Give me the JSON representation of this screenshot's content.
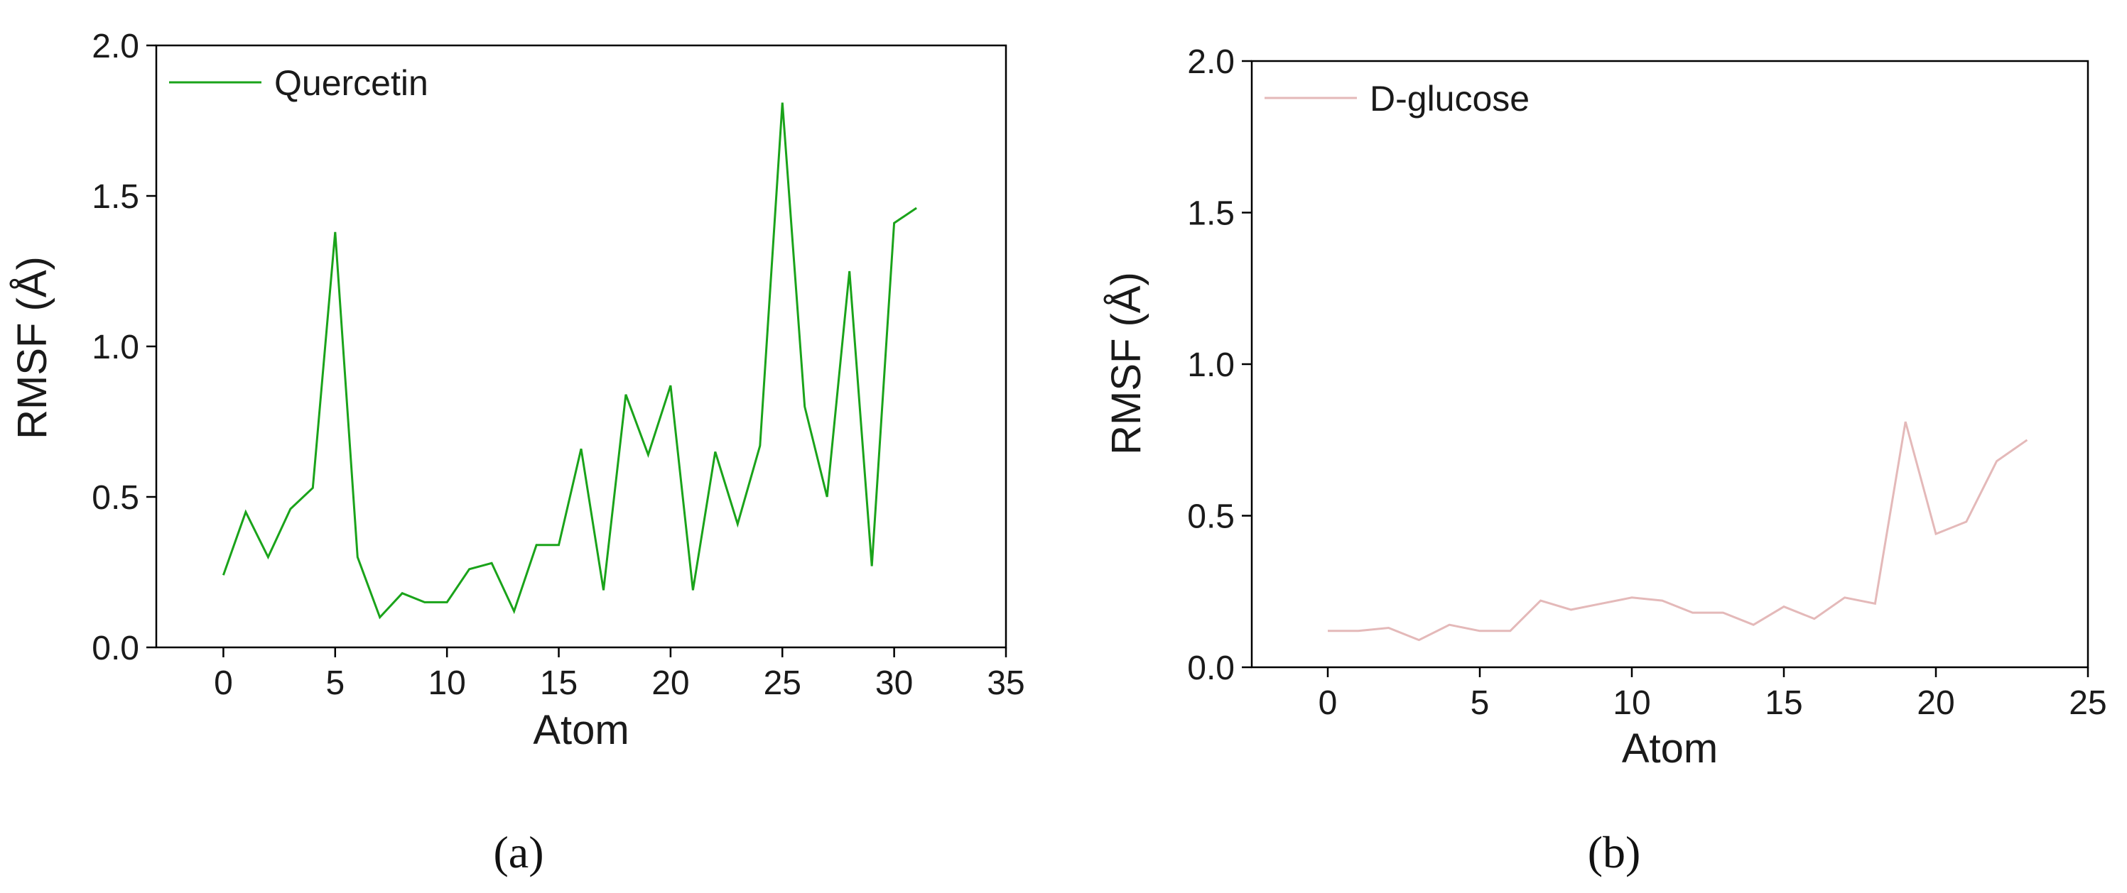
{
  "chart_data": [
    {
      "type": "line",
      "panel_label": "(a)",
      "xlabel": "Atom",
      "ylabel": "RMSF (Å)",
      "xlim": [
        -3,
        35
      ],
      "ylim": [
        0,
        2.0
      ],
      "xticks": [
        0,
        5,
        10,
        15,
        20,
        25,
        30,
        35
      ],
      "yticks": [
        0.0,
        0.5,
        1.0,
        1.5,
        2.0
      ],
      "xtick_labels": [
        "0",
        "5",
        "10",
        "15",
        "20",
        "25",
        "30",
        "35"
      ],
      "ytick_labels": [
        "0.0",
        "0.5",
        "1.0",
        "1.5",
        "2.0"
      ],
      "grid": false,
      "legend_position": "top-left",
      "series": [
        {
          "name": "Quercetin",
          "color": "#1aa31a",
          "x": [
            0,
            1,
            2,
            3,
            4,
            5,
            6,
            7,
            8,
            9,
            10,
            11,
            12,
            13,
            14,
            15,
            16,
            17,
            18,
            19,
            20,
            21,
            22,
            23,
            24,
            25,
            26,
            27,
            28,
            29,
            30,
            31
          ],
          "y": [
            0.24,
            0.45,
            0.3,
            0.46,
            0.53,
            1.38,
            0.3,
            0.1,
            0.18,
            0.15,
            0.15,
            0.26,
            0.28,
            0.12,
            0.34,
            0.34,
            0.66,
            0.19,
            0.84,
            0.64,
            0.87,
            0.19,
            0.65,
            0.41,
            0.67,
            1.81,
            0.8,
            0.5,
            1.25,
            0.27,
            1.41,
            1.46
          ]
        }
      ]
    },
    {
      "type": "line",
      "panel_label": "(b)",
      "xlabel": "Atom",
      "ylabel": "RMSF (Å)",
      "xlim": [
        -2.5,
        25
      ],
      "ylim": [
        0,
        2.0
      ],
      "xticks": [
        0,
        5,
        10,
        15,
        20,
        25
      ],
      "yticks": [
        0.0,
        0.5,
        1.0,
        1.5,
        2.0
      ],
      "xtick_labels": [
        "0",
        "5",
        "10",
        "15",
        "20",
        "25"
      ],
      "ytick_labels": [
        "0.0",
        "0.5",
        "1.0",
        "1.5",
        "2.0"
      ],
      "grid": false,
      "legend_position": "top-left",
      "series": [
        {
          "name": "D-glucose",
          "color": "#e4b9b9",
          "x": [
            0,
            1,
            2,
            3,
            4,
            5,
            6,
            7,
            8,
            9,
            10,
            11,
            12,
            13,
            14,
            15,
            16,
            17,
            18,
            19,
            20,
            21,
            22,
            23
          ],
          "y": [
            0.12,
            0.12,
            0.13,
            0.09,
            0.14,
            0.12,
            0.12,
            0.22,
            0.19,
            0.21,
            0.23,
            0.22,
            0.18,
            0.18,
            0.14,
            0.2,
            0.16,
            0.23,
            0.21,
            0.81,
            0.44,
            0.48,
            0.68,
            0.75
          ]
        }
      ]
    }
  ]
}
